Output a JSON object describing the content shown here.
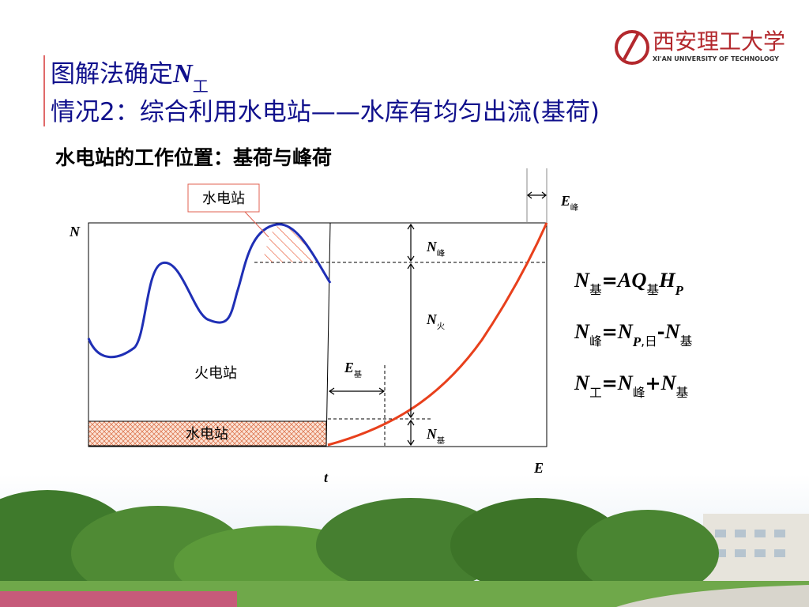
{
  "logo": {
    "name": "西安理工大学",
    "subtitle": "XI'AN UNIVERSITY OF TECHNOLOGY"
  },
  "title": {
    "line1": [
      {
        "text": "图解法确定"
      },
      {
        "text": "N",
        "style": "var"
      },
      {
        "text": "工",
        "style": "sub"
      }
    ],
    "line2": "情况2：综合利用水电站——水库有均匀出流(基荷)"
  },
  "subtitle": "水电站的工作位置：基荷与峰荷",
  "diagram": {
    "callout": "水电站",
    "thermal": "火电站",
    "hydro_base": "水电站",
    "axis_n": "N",
    "axis_t": "t",
    "axis_e": "E",
    "labels": [
      [
        {
          "text": "E",
          "style": "var"
        },
        {
          "text": "峰",
          "style": "sub"
        }
      ],
      [
        {
          "text": "N",
          "style": "var"
        },
        {
          "text": "峰",
          "style": "sub"
        }
      ],
      [
        {
          "text": "N",
          "style": "var"
        },
        {
          "text": "火",
          "style": "sub"
        }
      ],
      [
        {
          "text": "E",
          "style": "var"
        },
        {
          "text": "基",
          "style": "sub"
        }
      ],
      [
        {
          "text": "N",
          "style": "var"
        },
        {
          "text": "基",
          "style": "sub"
        }
      ]
    ]
  },
  "formulas": [
    [
      {
        "text": "N",
        "style": "var"
      },
      {
        "text": "基",
        "style": "sub"
      },
      {
        "text": "=",
        "style": "op"
      },
      {
        "text": "AQ",
        "style": "var"
      },
      {
        "text": "基",
        "style": "sub"
      },
      {
        "text": "H",
        "style": "var"
      },
      {
        "text": "P",
        "style": "varsub"
      }
    ],
    [
      {
        "text": "N",
        "style": "var"
      },
      {
        "text": "峰",
        "style": "sub"
      },
      {
        "text": "=",
        "style": "op"
      },
      {
        "text": "N",
        "style": "var"
      },
      {
        "text": "P",
        "style": "varsub"
      },
      {
        "text": ",日",
        "style": "sub"
      },
      {
        "text": "-",
        "style": "op"
      },
      {
        "text": "N",
        "style": "var"
      },
      {
        "text": "基",
        "style": "sub"
      }
    ],
    [
      {
        "text": "N",
        "style": "var"
      },
      {
        "text": "工",
        "style": "sub"
      },
      {
        "text": "=",
        "style": "op"
      },
      {
        "text": "N",
        "style": "var"
      },
      {
        "text": "峰",
        "style": "sub"
      },
      {
        "text": "+",
        "style": "op"
      },
      {
        "text": "N",
        "style": "var"
      },
      {
        "text": "基",
        "style": "sub"
      }
    ]
  ]
}
